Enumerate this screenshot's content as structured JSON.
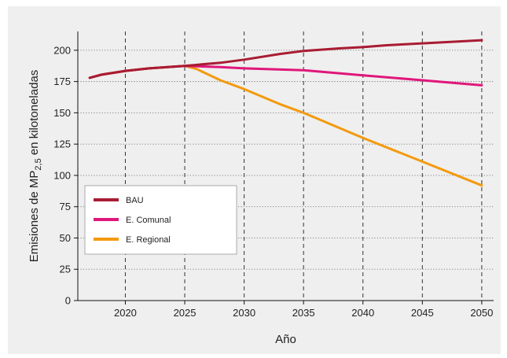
{
  "chart_data": {
    "type": "line",
    "xlabel": "Año",
    "ylabel": {
      "prefix": "Emisiones de MP",
      "subscript": "2,5",
      "suffix": " en kilotoneladas"
    },
    "xlim": [
      2016,
      2051
    ],
    "ylim": [
      0,
      215
    ],
    "x_ticks": [
      2020,
      2025,
      2030,
      2035,
      2040,
      2045,
      2050
    ],
    "y_ticks": [
      0,
      25,
      50,
      75,
      100,
      125,
      150,
      175,
      200
    ],
    "x_grid": "dashed vertical lines at x ticks",
    "y_grid": "dotted horizontal lines at y ticks",
    "legend_position": "left-center",
    "series": [
      {
        "name": "BAU",
        "color": "#a81c32",
        "points": [
          [
            2017,
            178
          ],
          [
            2018,
            180.5
          ],
          [
            2020,
            183.5
          ],
          [
            2022,
            185.5
          ],
          [
            2025,
            187.5
          ],
          [
            2028,
            190
          ],
          [
            2030,
            192.5
          ],
          [
            2033,
            197
          ],
          [
            2035,
            199.5
          ],
          [
            2038,
            201.5
          ],
          [
            2040,
            202.5
          ],
          [
            2042,
            204
          ],
          [
            2045,
            205.5
          ],
          [
            2048,
            207
          ],
          [
            2050,
            208
          ]
        ]
      },
      {
        "name": "E. Comunal",
        "color": "#e0177a",
        "points": [
          [
            2017,
            178
          ],
          [
            2018,
            180.5
          ],
          [
            2020,
            183.5
          ],
          [
            2022,
            185.5
          ],
          [
            2025,
            187.5
          ],
          [
            2028,
            186.5
          ],
          [
            2030,
            185.5
          ],
          [
            2035,
            184
          ],
          [
            2040,
            180
          ],
          [
            2045,
            176
          ],
          [
            2050,
            172
          ]
        ]
      },
      {
        "name": "E. Regional",
        "color": "#f39a0e",
        "points": [
          [
            2017,
            178
          ],
          [
            2018,
            180.5
          ],
          [
            2020,
            183.5
          ],
          [
            2022,
            185.5
          ],
          [
            2025,
            187.5
          ],
          [
            2026,
            185
          ],
          [
            2027,
            180.5
          ],
          [
            2028,
            176
          ],
          [
            2030,
            169
          ],
          [
            2033,
            157
          ],
          [
            2035,
            150
          ],
          [
            2040,
            130
          ],
          [
            2045,
            111
          ],
          [
            2050,
            92
          ]
        ]
      }
    ]
  }
}
